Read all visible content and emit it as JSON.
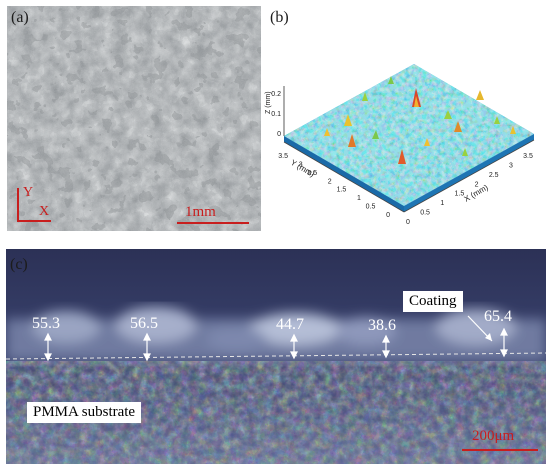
{
  "panel_a": {
    "label": "(a)",
    "axis_y": "Y",
    "axis_x": "X",
    "scale_label": "1mm",
    "accent": "#c81e1e"
  },
  "panel_b": {
    "label": "(b)",
    "z_axis_label": "Z (mm)",
    "y_axis_label": "Y (mm)",
    "x_axis_label": "X (mm)",
    "z_ticks": [
      "0.2",
      "0.1",
      "0"
    ],
    "y_ticks": [
      "3.5",
      "3",
      "2.5",
      "2",
      "1.5",
      "1",
      "0.5",
      "0"
    ],
    "x_ticks": [
      "0",
      "0.5",
      "1",
      "1.5",
      "2",
      "2.5",
      "3",
      "3.5"
    ]
  },
  "panel_c": {
    "label": "(c)",
    "measurements": [
      "55.3",
      "56.5",
      "44.7",
      "38.6",
      "65.4"
    ],
    "coating_label": "Coating",
    "substrate_label": "PMMA substrate",
    "scale_label": "200μm",
    "accent": "#c81e1e"
  }
}
